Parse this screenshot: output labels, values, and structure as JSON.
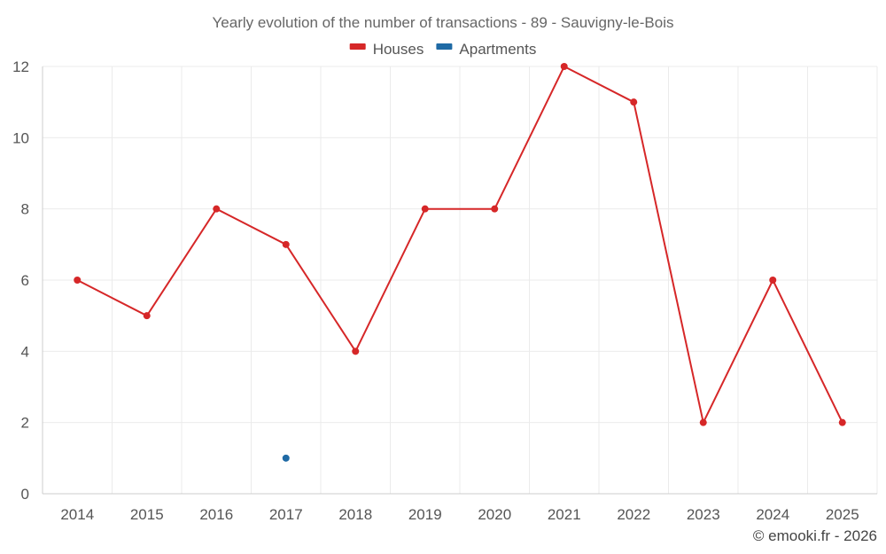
{
  "chart_data": {
    "type": "line",
    "title": "Yearly evolution of the number of transactions - 89 - Sauvigny-le-Bois",
    "categories": [
      "2014",
      "2015",
      "2016",
      "2017",
      "2018",
      "2019",
      "2020",
      "2021",
      "2022",
      "2023",
      "2024",
      "2025"
    ],
    "y_ticks": [
      "0",
      "2",
      "4",
      "6",
      "8",
      "10",
      "12"
    ],
    "ylim": [
      0,
      12
    ],
    "grid": true,
    "legend_position": "top-center",
    "series": [
      {
        "name": "Houses",
        "color": "#d62728",
        "values": [
          6,
          5,
          8,
          7,
          4,
          8,
          8,
          12,
          11,
          2,
          6,
          2
        ]
      },
      {
        "name": "Apartments",
        "color": "#1f6aa5",
        "values": [
          null,
          null,
          null,
          1,
          null,
          null,
          null,
          null,
          null,
          null,
          null,
          null
        ]
      }
    ]
  },
  "credit": "© emooki.fr - 2026"
}
